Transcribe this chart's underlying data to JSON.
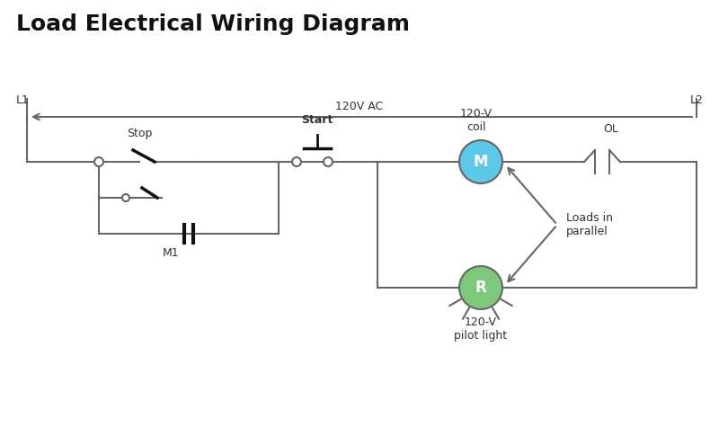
{
  "title": "Load Electrical Wiring Diagram",
  "title_fontsize": 18,
  "title_fontweight": "bold",
  "bg_color": "#ffffff",
  "line_color": "#666666",
  "text_color": "#333333",
  "M_circle_color": "#5bc8e8",
  "R_circle_color": "#7dc87a",
  "figsize": [
    8.0,
    4.75
  ],
  "dpi": 100,
  "L1_label": "L1",
  "L2_label": "L2",
  "voltage_label": "120V AC",
  "stop_label": "Stop",
  "start_label": "Start",
  "coil_label": "120-V\ncoil",
  "OL_label": "OL",
  "M1_label": "M1",
  "M_label": "M",
  "R_label": "R",
  "loads_label": "Loads in\nparallel",
  "pilot_label": "120-V\npilot light"
}
